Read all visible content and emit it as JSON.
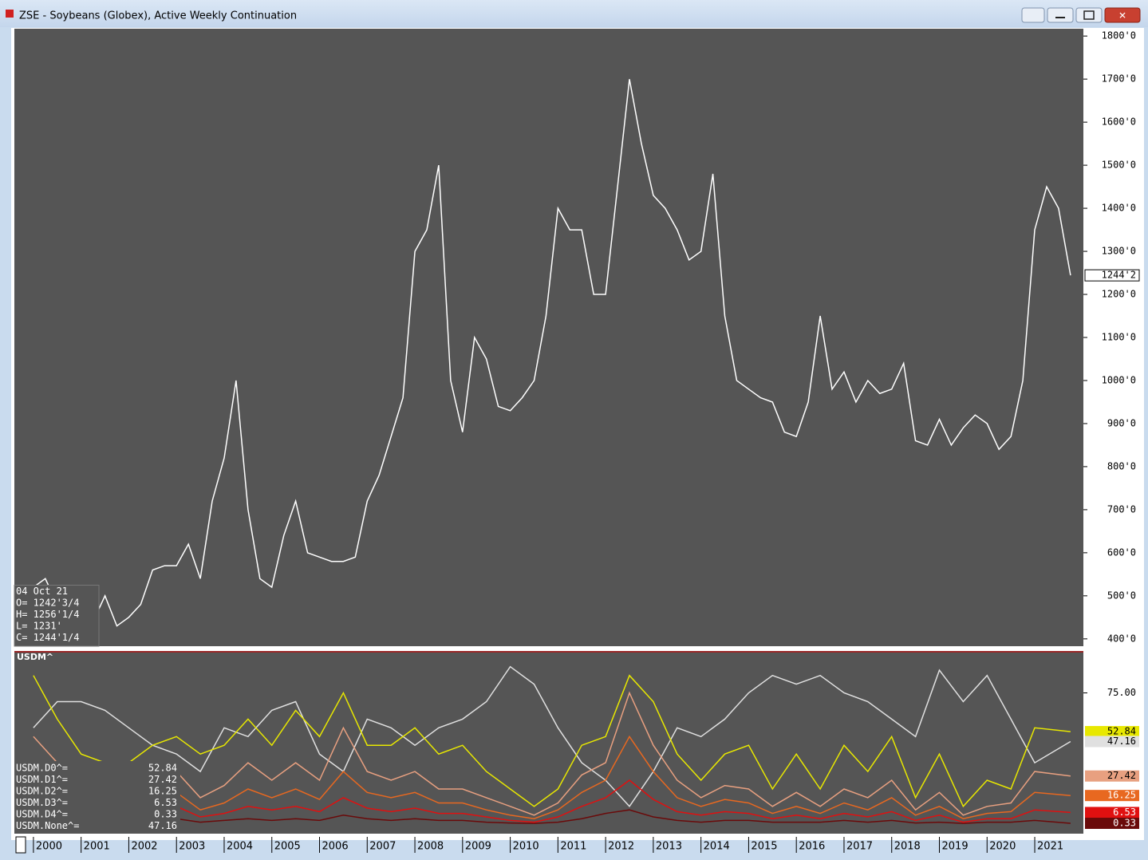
{
  "window": {
    "title": "ZSE - Soybeans (Globex), Active Weekly Continuation"
  },
  "chart_data": [
    {
      "type": "line",
      "background": "#555555",
      "x": [
        2000,
        2000.25,
        2000.5,
        2000.75,
        2001,
        2001.25,
        2001.5,
        2001.75,
        2002,
        2002.25,
        2002.5,
        2002.75,
        2003,
        2003.25,
        2003.5,
        2003.75,
        2004,
        2004.25,
        2004.5,
        2004.75,
        2005,
        2005.25,
        2005.5,
        2005.75,
        2006,
        2006.25,
        2006.5,
        2006.75,
        2007,
        2007.25,
        2007.5,
        2007.75,
        2008,
        2008.25,
        2008.5,
        2008.75,
        2009,
        2009.25,
        2009.5,
        2009.75,
        2010,
        2010.25,
        2010.5,
        2010.75,
        2011,
        2011.25,
        2011.5,
        2011.75,
        2012,
        2012.25,
        2012.5,
        2012.75,
        2013,
        2013.25,
        2013.5,
        2013.75,
        2014,
        2014.25,
        2014.5,
        2014.75,
        2015,
        2015.25,
        2015.5,
        2015.75,
        2016,
        2016.25,
        2016.5,
        2016.75,
        2017,
        2017.25,
        2017.5,
        2017.75,
        2018,
        2018.25,
        2018.5,
        2018.75,
        2019,
        2019.25,
        2019.5,
        2019.75,
        2020,
        2020.25,
        2020.5,
        2020.75,
        2021,
        2021.25,
        2021.5,
        2021.75
      ],
      "series": [
        {
          "name": "ZSE",
          "color": "#ffffff",
          "values": [
            520,
            540,
            480,
            490,
            470,
            440,
            500,
            430,
            450,
            480,
            560,
            570,
            570,
            620,
            540,
            720,
            820,
            1000,
            700,
            540,
            520,
            640,
            720,
            600,
            590,
            580,
            580,
            590,
            720,
            780,
            870,
            960,
            1300,
            1350,
            1500,
            1000,
            880,
            1100,
            1050,
            940,
            930,
            960,
            1000,
            1150,
            1400,
            1350,
            1350,
            1200,
            1200,
            1450,
            1700,
            1550,
            1430,
            1400,
            1350,
            1280,
            1300,
            1480,
            1150,
            1000,
            980,
            960,
            950,
            880,
            870,
            950,
            1150,
            980,
            1020,
            950,
            1000,
            970,
            980,
            1040,
            860,
            850,
            910,
            850,
            890,
            920,
            900,
            840,
            870,
            1000,
            1350,
            1450,
            1400,
            1244.25
          ]
        }
      ],
      "last_value_label": "1244'2",
      "xlim": [
        1999.6,
        2022.02
      ],
      "ylim": [
        383,
        1817
      ],
      "yticks": [
        {
          "value": 400,
          "label": "400'0"
        },
        {
          "value": 500,
          "label": "500'0"
        },
        {
          "value": 600,
          "label": "600'0"
        },
        {
          "value": 700,
          "label": "700'0"
        },
        {
          "value": 800,
          "label": "800'0"
        },
        {
          "value": 900,
          "label": "900'0"
        },
        {
          "value": 1000,
          "label": "1000'0"
        },
        {
          "value": 1100,
          "label": "1100'0"
        },
        {
          "value": 1200,
          "label": "1200'0"
        },
        {
          "value": 1300,
          "label": "1300'0"
        },
        {
          "value": 1400,
          "label": "1400'0"
        },
        {
          "value": 1500,
          "label": "1500'0"
        },
        {
          "value": 1600,
          "label": "1600'0"
        },
        {
          "value": 1700,
          "label": "1700'0"
        },
        {
          "value": 1800,
          "label": "1800'0"
        }
      ],
      "ohlc": [
        "04 Oct 21",
        "O= 1242'3/4",
        "H= 1256'1/4",
        "L= 1231'",
        "C= 1244'1/4"
      ]
    },
    {
      "type": "line",
      "title": "USDM^",
      "background": "#555555",
      "x": [
        2000,
        2000.5,
        2001,
        2001.5,
        2002,
        2002.5,
        2003,
        2003.5,
        2004,
        2004.5,
        2005,
        2005.5,
        2006,
        2006.5,
        2007,
        2007.5,
        2008,
        2008.5,
        2009,
        2009.5,
        2010,
        2010.5,
        2011,
        2011.5,
        2012,
        2012.5,
        2013,
        2013.5,
        2014,
        2014.5,
        2015,
        2015.5,
        2016,
        2016.5,
        2017,
        2017.5,
        2018,
        2018.5,
        2019,
        2019.5,
        2020,
        2020.5,
        2021,
        2021.75
      ],
      "series": [
        {
          "name": "USDM.D0^=",
          "color": "#e8e800",
          "text_color": "#000000",
          "values": [
            85,
            60,
            40,
            35,
            35,
            45,
            50,
            40,
            45,
            60,
            45,
            65,
            50,
            75,
            45,
            45,
            55,
            40,
            45,
            30,
            20,
            10,
            20,
            45,
            50,
            85,
            70,
            40,
            25,
            40,
            45,
            20,
            40,
            20,
            45,
            30,
            50,
            15,
            40,
            10,
            25,
            20,
            55,
            52.84
          ]
        },
        {
          "name": "USDM.D1^=",
          "color": "#e8a080",
          "text_color": "#000000",
          "values": [
            50,
            35,
            25,
            20,
            18,
            20,
            30,
            15,
            22,
            35,
            25,
            35,
            25,
            55,
            30,
            25,
            30,
            20,
            20,
            15,
            10,
            5,
            12,
            28,
            35,
            75,
            45,
            25,
            15,
            22,
            20,
            10,
            18,
            10,
            20,
            15,
            25,
            8,
            18,
            5,
            10,
            12,
            30,
            27.42
          ]
        },
        {
          "name": "USDM.D2^=",
          "color": "#e86820",
          "text_color": "#ffffff",
          "values": [
            30,
            20,
            15,
            12,
            10,
            12,
            18,
            8,
            12,
            20,
            15,
            20,
            14,
            30,
            18,
            15,
            18,
            12,
            12,
            8,
            5,
            3,
            8,
            18,
            25,
            50,
            30,
            15,
            10,
            14,
            12,
            6,
            10,
            6,
            12,
            8,
            15,
            5,
            10,
            3,
            6,
            7,
            18,
            16.25
          ]
        },
        {
          "name": "USDM.D3^=",
          "color": "#e01010",
          "text_color": "#ffffff",
          "values": [
            15,
            10,
            8,
            6,
            5,
            6,
            10,
            4,
            6,
            10,
            8,
            10,
            7,
            15,
            9,
            7,
            9,
            6,
            6,
            4,
            2,
            1,
            4,
            10,
            15,
            25,
            14,
            7,
            5,
            7,
            6,
            3,
            5,
            3,
            6,
            4,
            7,
            2,
            5,
            1,
            3,
            3,
            8,
            6.53
          ]
        },
        {
          "name": "USDM.D4^=",
          "color": "#6a0a0a",
          "text_color": "#ffffff",
          "values": [
            5,
            3,
            2,
            2,
            1,
            1,
            3,
            1,
            2,
            3,
            2,
            3,
            2,
            5,
            3,
            2,
            3,
            2,
            2,
            1,
            0.5,
            0.3,
            1,
            3,
            6,
            8,
            4,
            2,
            1,
            2,
            2,
            1,
            1,
            1,
            2,
            1,
            2,
            0.5,
            1,
            0.3,
            1,
            1,
            2,
            0.33
          ]
        },
        {
          "name": "USDM.None^=",
          "color": "#e0e0e0",
          "text_color": "#000000",
          "values": [
            55,
            70,
            70,
            65,
            55,
            45,
            40,
            30,
            55,
            50,
            65,
            70,
            40,
            30,
            60,
            55,
            45,
            55,
            60,
            70,
            90,
            80,
            55,
            35,
            25,
            10,
            30,
            55,
            50,
            60,
            75,
            85,
            80,
            85,
            75,
            70,
            60,
            50,
            88,
            70,
            85,
            60,
            35,
            47.16
          ]
        }
      ],
      "xlim": [
        1999.6,
        2022.02
      ],
      "ylim": [
        -5.6,
        99
      ],
      "yticks": [
        {
          "value": 75,
          "label": "75.00"
        }
      ],
      "xticks": [
        2000,
        2001,
        2002,
        2003,
        2004,
        2005,
        2006,
        2007,
        2008,
        2009,
        2010,
        2011,
        2012,
        2013,
        2014,
        2015,
        2016,
        2017,
        2018,
        2019,
        2020,
        2021
      ]
    }
  ]
}
